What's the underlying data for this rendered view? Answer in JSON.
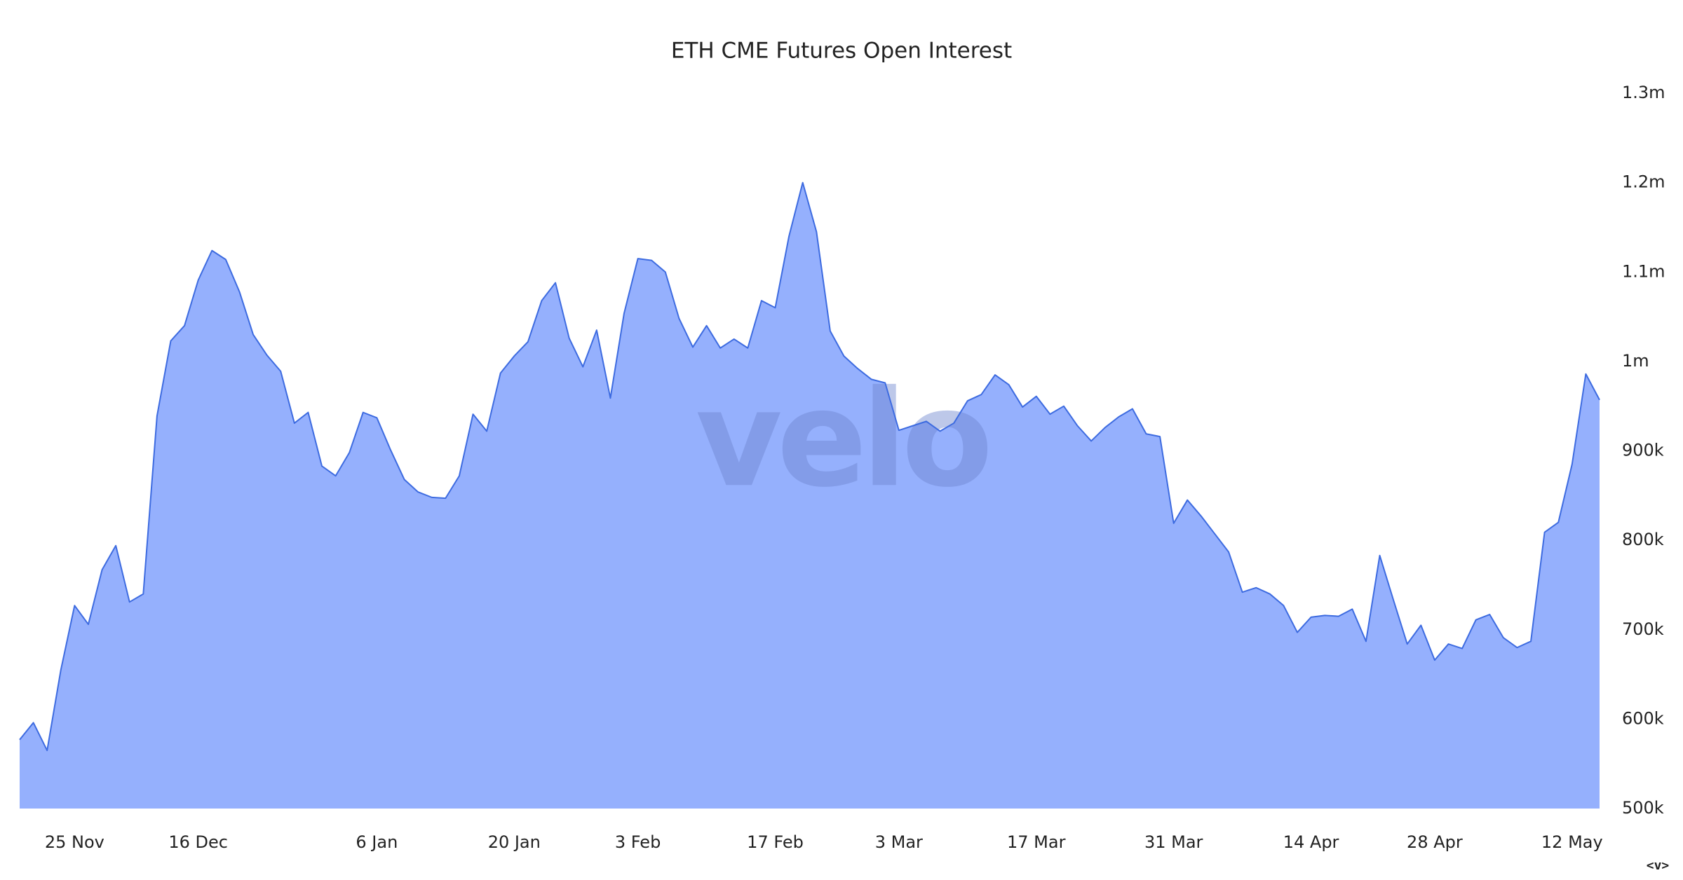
{
  "chart_data": {
    "type": "area",
    "title": "ETH CME Futures Open Interest",
    "watermark": "velo",
    "control": "<v>",
    "color": "#3d6be0",
    "fill": "#95b0fd",
    "axis_side": "right",
    "categories": [
      null,
      null,
      null,
      null,
      "25 Nov",
      null,
      null,
      null,
      null,
      null,
      null,
      null,
      null,
      "16 Dec",
      null,
      null,
      null,
      null,
      null,
      null,
      null,
      null,
      null,
      null,
      null,
      null,
      "6 Jan",
      null,
      null,
      null,
      null,
      null,
      null,
      null,
      null,
      null,
      "20 Jan",
      null,
      null,
      null,
      null,
      null,
      null,
      null,
      null,
      "3 Feb",
      null,
      null,
      null,
      null,
      null,
      null,
      null,
      null,
      null,
      "17 Feb",
      null,
      null,
      null,
      null,
      null,
      null,
      null,
      null,
      "3 Mar",
      null,
      null,
      null,
      null,
      null,
      null,
      null,
      null,
      null,
      "17 Mar",
      null,
      null,
      null,
      null,
      null,
      null,
      null,
      null,
      null,
      "31 Mar",
      null,
      null,
      null,
      null,
      null,
      null,
      null,
      null,
      null,
      "14 Apr",
      null,
      null,
      null,
      null,
      null,
      null,
      null,
      null,
      "28 Apr",
      null,
      null,
      null,
      null,
      null,
      null,
      null,
      null,
      null,
      "12 May",
      null,
      null
    ],
    "values": [
      577000,
      596000,
      565000,
      655000,
      727000,
      706000,
      767000,
      794000,
      731000,
      740000,
      939000,
      1023000,
      1040000,
      1091000,
      1124000,
      1114000,
      1078000,
      1030000,
      1007000,
      989000,
      931000,
      943000,
      883000,
      872000,
      898000,
      943000,
      937000,
      901000,
      868000,
      854000,
      848000,
      847000,
      872000,
      941000,
      922000,
      987000,
      1006000,
      1022000,
      1068000,
      1088000,
      1026000,
      994000,
      1035000,
      959000,
      1054000,
      1115000,
      1113000,
      1100000,
      1048000,
      1016000,
      1040000,
      1015000,
      1025000,
      1015000,
      1068000,
      1060000,
      1140000,
      1200000,
      1145000,
      1034000,
      1006000,
      992000,
      980000,
      976000,
      923000,
      928000,
      933000,
      922000,
      931000,
      956000,
      963000,
      985000,
      974000,
      949000,
      961000,
      941000,
      950000,
      928000,
      911000,
      926000,
      938000,
      947000,
      919000,
      916000,
      819000,
      845000,
      827000,
      807000,
      787000,
      742000,
      747000,
      740000,
      727000,
      697000,
      714000,
      716000,
      715000,
      723000,
      687000,
      783000,
      733000,
      684000,
      705000,
      666000,
      684000,
      679000,
      711000,
      717000,
      691000,
      680000,
      687000,
      809000,
      820000,
      885000,
      986000,
      957000
    ],
    "ylim": [
      500000,
      1300000
    ],
    "yticks": [
      {
        "value": 500000,
        "label": "500k"
      },
      {
        "value": 600000,
        "label": "600k"
      },
      {
        "value": 700000,
        "label": "700k"
      },
      {
        "value": 800000,
        "label": "800k"
      },
      {
        "value": 900000,
        "label": "900k"
      },
      {
        "value": 1000000,
        "label": "1m"
      },
      {
        "value": 1100000,
        "label": "1.1m"
      },
      {
        "value": 1200000,
        "label": "1.2m"
      },
      {
        "value": 1300000,
        "label": "1.3m"
      }
    ],
    "grid": false
  }
}
